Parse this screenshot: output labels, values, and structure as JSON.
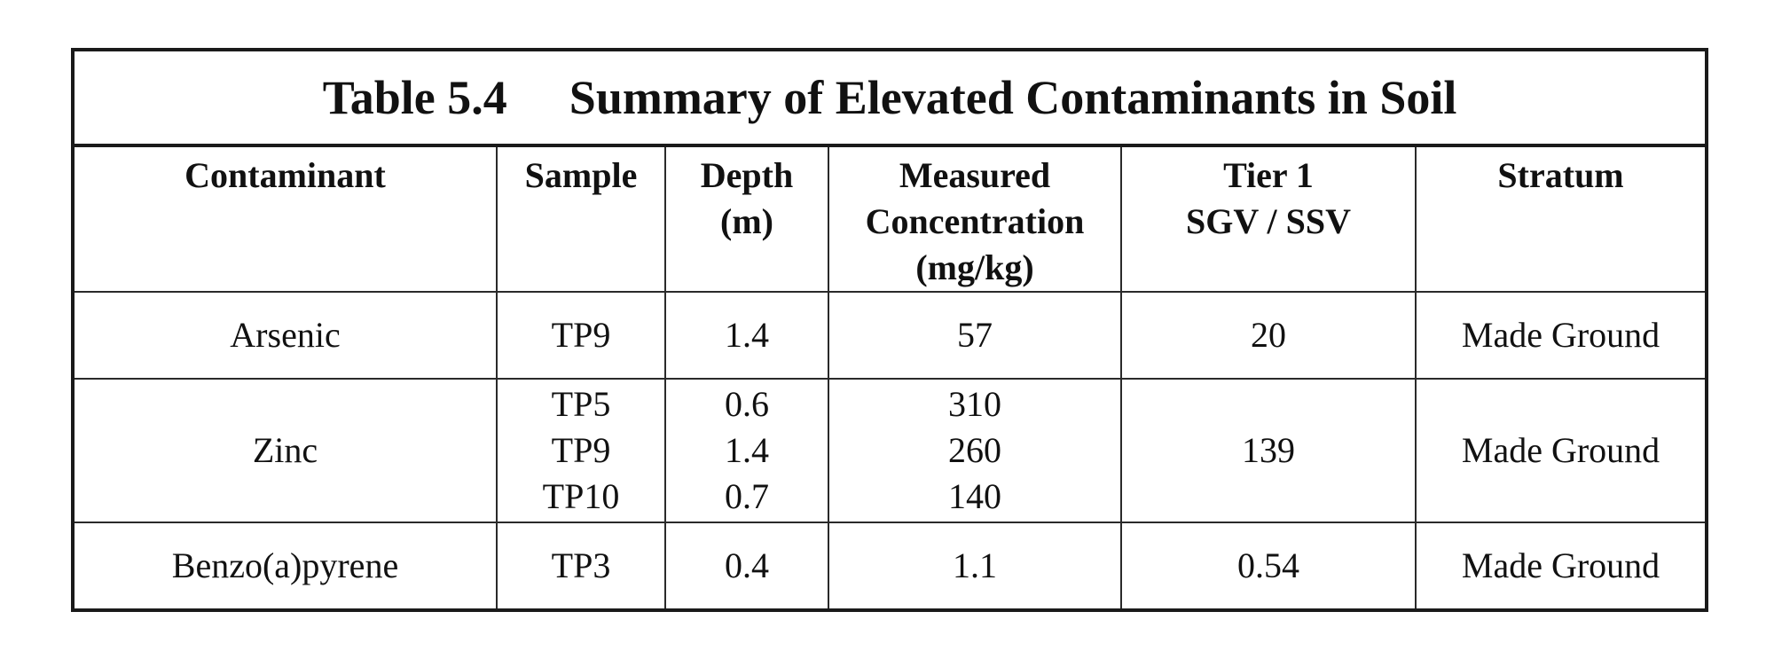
{
  "table": {
    "caption_number": "Table 5.4",
    "caption_title": "Summary of Elevated Contaminants in Soil",
    "headers": {
      "contaminant": "Contaminant",
      "sample": "Sample",
      "depth_line1": "Depth",
      "depth_line2": "(m)",
      "concentration_line1": "Measured",
      "concentration_line2": "Concentration",
      "concentration_line3": "(mg/kg)",
      "tier_line1": "Tier 1",
      "tier_line2": "SGV / SSV",
      "stratum": "Stratum"
    },
    "rows": [
      {
        "contaminant": "Arsenic",
        "samples": [
          "TP9"
        ],
        "depths": [
          "1.4"
        ],
        "concentrations": [
          "57"
        ],
        "tier1": "20",
        "stratum": "Made Ground"
      },
      {
        "contaminant": "Zinc",
        "samples": [
          "TP5",
          "TP9",
          "TP10"
        ],
        "depths": [
          "0.6",
          "1.4",
          "0.7"
        ],
        "concentrations": [
          "310",
          "260",
          "140"
        ],
        "tier1": "139",
        "stratum": "Made Ground"
      },
      {
        "contaminant": "Benzo(a)pyrene",
        "samples": [
          "TP3"
        ],
        "depths": [
          "0.4"
        ],
        "concentrations": [
          "1.1"
        ],
        "tier1": "0.54",
        "stratum": "Made Ground"
      }
    ]
  }
}
